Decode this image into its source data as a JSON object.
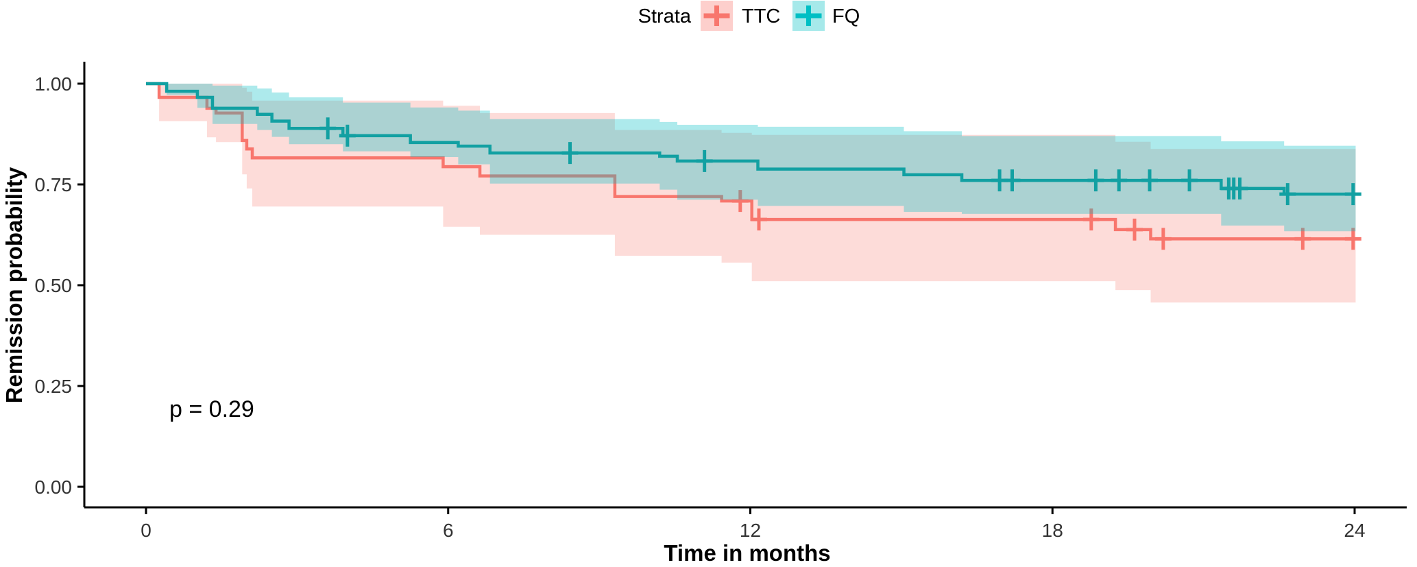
{
  "chart_data": {
    "type": "line",
    "subtype": "kaplan-meier-step-with-confidence-bands",
    "title": "",
    "xlabel": "Time in months",
    "ylabel": "Remission probability",
    "legend_title": "Strata",
    "legend_position": "top",
    "pvalue_text": "p = 0.29",
    "grid": "off",
    "xlim": [
      0,
      24
    ],
    "ylim": [
      0,
      1
    ],
    "end_time": 24.02,
    "x_ticks": [
      {
        "v": 0,
        "label": "0"
      },
      {
        "v": 6,
        "label": "6"
      },
      {
        "v": 12,
        "label": "12"
      },
      {
        "v": 18,
        "label": "18"
      },
      {
        "v": 24,
        "label": "24"
      }
    ],
    "y_ticks": [
      {
        "v": 0.0,
        "label": "0.00"
      },
      {
        "v": 0.25,
        "label": "0.25"
      },
      {
        "v": 0.5,
        "label": "0.50"
      },
      {
        "v": 0.75,
        "label": "0.75"
      },
      {
        "v": 1.0,
        "label": "1.00"
      }
    ],
    "series": [
      {
        "name": "TTC",
        "line_color": "#F8766D",
        "marker_color": "#F8766D",
        "fill_color": "#F8766D",
        "fill_opacity": 0.26,
        "steps": [
          [
            0,
            1.0
          ],
          [
            0.26,
            0.966
          ],
          [
            1.21,
            0.939
          ],
          [
            1.39,
            0.927
          ],
          [
            1.91,
            0.859
          ],
          [
            2.0,
            0.838
          ],
          [
            2.11,
            0.816
          ],
          [
            5.9,
            0.794
          ],
          [
            6.63,
            0.771
          ],
          [
            9.31,
            0.72
          ],
          [
            11.43,
            0.709
          ],
          [
            12.03,
            0.663
          ],
          [
            19.25,
            0.638
          ],
          [
            19.95,
            0.615
          ]
        ],
        "censor_times": [
          11.8,
          12.17,
          18.77,
          19.63,
          20.2,
          22.97,
          23.97
        ],
        "ci_upper": [
          [
            0.26,
            1.0
          ],
          [
            1.91,
            0.99
          ],
          [
            2.0,
            0.98
          ],
          [
            2.11,
            0.958
          ],
          [
            5.9,
            0.945
          ],
          [
            6.63,
            0.927
          ],
          [
            9.31,
            0.885
          ],
          [
            11.43,
            0.878
          ],
          [
            12.03,
            0.873
          ],
          [
            19.25,
            0.856
          ],
          [
            19.95,
            0.838
          ]
        ],
        "ci_lower": [
          [
            0.26,
            0.907
          ],
          [
            1.21,
            0.867
          ],
          [
            1.39,
            0.855
          ],
          [
            1.91,
            0.775
          ],
          [
            2.0,
            0.74
          ],
          [
            2.11,
            0.695
          ],
          [
            5.9,
            0.645
          ],
          [
            6.63,
            0.625
          ],
          [
            9.31,
            0.573
          ],
          [
            11.43,
            0.556
          ],
          [
            12.03,
            0.51
          ],
          [
            19.25,
            0.488
          ],
          [
            19.95,
            0.457
          ]
        ]
      },
      {
        "name": "FQ",
        "line_color": "#12A0A2",
        "marker_color": "#00BFC4",
        "fill_color": "#00BFC4",
        "fill_opacity": 0.32,
        "steps": [
          [
            0,
            1.0
          ],
          [
            0.41,
            0.981
          ],
          [
            1.02,
            0.966
          ],
          [
            1.32,
            0.939
          ],
          [
            2.21,
            0.924
          ],
          [
            2.5,
            0.907
          ],
          [
            2.84,
            0.889
          ],
          [
            3.91,
            0.871
          ],
          [
            5.25,
            0.854
          ],
          [
            6.2,
            0.845
          ],
          [
            6.83,
            0.828
          ],
          [
            10.2,
            0.82
          ],
          [
            10.55,
            0.808
          ],
          [
            12.15,
            0.788
          ],
          [
            15.05,
            0.774
          ],
          [
            16.2,
            0.76
          ],
          [
            21.35,
            0.74
          ],
          [
            22.6,
            0.726
          ]
        ],
        "censor_times": [
          3.61,
          4.0,
          8.42,
          11.09,
          16.95,
          17.2,
          18.86,
          19.32,
          19.93,
          20.72,
          21.5,
          21.6,
          21.72,
          22.67,
          23.97
        ],
        "ci_upper": [
          [
            0.41,
            1.0
          ],
          [
            1.32,
            0.995
          ],
          [
            2.21,
            0.988
          ],
          [
            2.5,
            0.978
          ],
          [
            2.84,
            0.966
          ],
          [
            3.91,
            0.953
          ],
          [
            5.25,
            0.941
          ],
          [
            6.2,
            0.933
          ],
          [
            6.83,
            0.912
          ],
          [
            10.2,
            0.905
          ],
          [
            10.55,
            0.898
          ],
          [
            12.15,
            0.893
          ],
          [
            15.05,
            0.882
          ],
          [
            16.2,
            0.87
          ],
          [
            21.35,
            0.857
          ],
          [
            22.6,
            0.846
          ]
        ],
        "ci_lower": [
          [
            0.41,
            0.972
          ],
          [
            1.02,
            0.94
          ],
          [
            1.32,
            0.9
          ],
          [
            2.21,
            0.885
          ],
          [
            2.5,
            0.868
          ],
          [
            2.84,
            0.85
          ],
          [
            3.91,
            0.832
          ],
          [
            5.25,
            0.818
          ],
          [
            6.2,
            0.8
          ],
          [
            6.83,
            0.752
          ],
          [
            10.2,
            0.737
          ],
          [
            10.55,
            0.712
          ],
          [
            12.15,
            0.697
          ],
          [
            15.05,
            0.682
          ],
          [
            16.2,
            0.677
          ],
          [
            21.35,
            0.648
          ],
          [
            22.6,
            0.634
          ]
        ]
      }
    ]
  },
  "colors": {
    "axis_line": "#000000",
    "tick_label": "#333333",
    "text": "#000000",
    "background": "#FFFFFF"
  }
}
